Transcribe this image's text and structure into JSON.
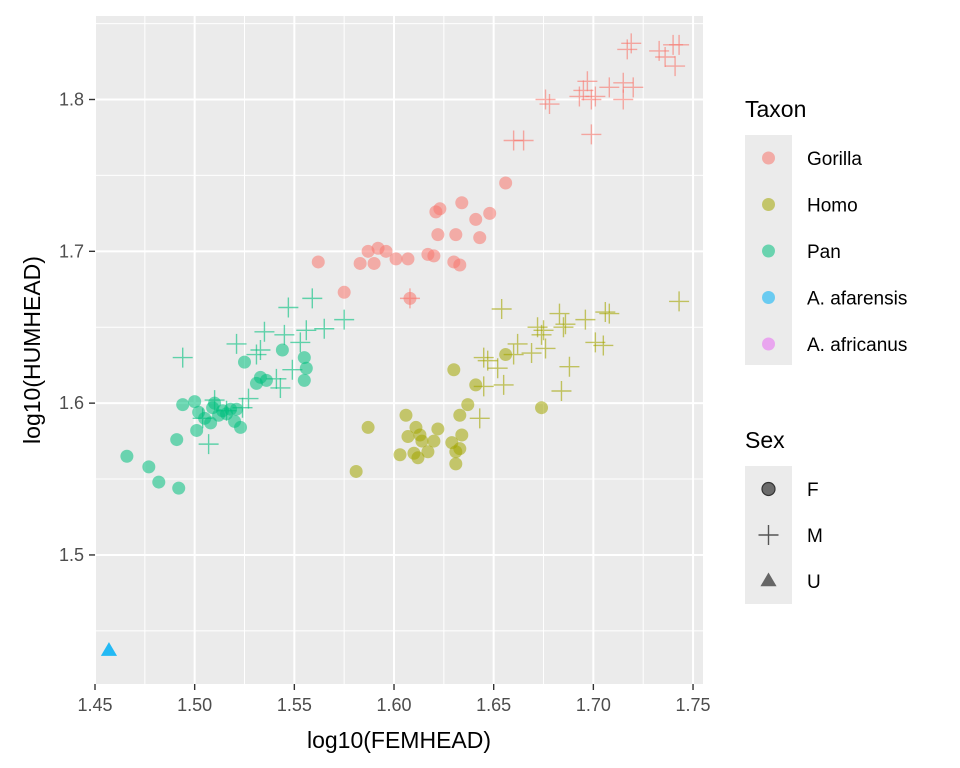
{
  "chart_data": {
    "type": "scatter",
    "xlabel": "log10(FEMHEAD)",
    "ylabel": "log10(HUMHEAD)",
    "xlim": [
      1.45,
      1.755
    ],
    "ylim": [
      1.415,
      1.855
    ],
    "x_ticks": [
      1.45,
      1.5,
      1.55,
      1.6,
      1.65,
      1.7,
      1.75
    ],
    "x_tick_labels": [
      "1.45",
      "1.50",
      "1.55",
      "1.60",
      "1.65",
      "1.70",
      "1.75"
    ],
    "y_ticks": [
      1.5,
      1.6,
      1.7,
      1.8
    ],
    "y_tick_labels": [
      "1.5",
      "1.6",
      "1.7",
      "1.8"
    ],
    "grid": true,
    "colors": {
      "Gorilla": "#F8766D",
      "Homo": "#A3A500",
      "Pan": "#00BF7D",
      "A. afarensis": "#00B0F6",
      "A. africanus": "#E76BF3"
    },
    "legend_taxon": {
      "title": "Taxon",
      "entries": [
        "Gorilla",
        "Homo",
        "Pan",
        "A. afarensis",
        "A. africanus"
      ]
    },
    "legend_sex": {
      "title": "Sex",
      "entries": [
        {
          "label": "F",
          "shape": "circle"
        },
        {
          "label": "M",
          "shape": "plus"
        },
        {
          "label": "U",
          "shape": "triangle"
        }
      ]
    },
    "series": [
      {
        "taxon": "Gorilla",
        "sex": "F",
        "shape": "circle",
        "points": [
          [
            1.562,
            1.693
          ],
          [
            1.575,
            1.673
          ],
          [
            1.583,
            1.692
          ],
          [
            1.587,
            1.7
          ],
          [
            1.59,
            1.692
          ],
          [
            1.592,
            1.702
          ],
          [
            1.596,
            1.7
          ],
          [
            1.601,
            1.695
          ],
          [
            1.607,
            1.695
          ],
          [
            1.608,
            1.669
          ],
          [
            1.617,
            1.698
          ],
          [
            1.62,
            1.697
          ],
          [
            1.621,
            1.726
          ],
          [
            1.622,
            1.711
          ],
          [
            1.623,
            1.728
          ],
          [
            1.63,
            1.693
          ],
          [
            1.631,
            1.711
          ],
          [
            1.633,
            1.691
          ],
          [
            1.634,
            1.732
          ],
          [
            1.641,
            1.721
          ],
          [
            1.643,
            1.709
          ],
          [
            1.648,
            1.725
          ],
          [
            1.656,
            1.745
          ]
        ]
      },
      {
        "taxon": "Gorilla",
        "sex": "M",
        "shape": "plus",
        "points": [
          [
            1.608,
            1.669
          ],
          [
            1.66,
            1.773
          ],
          [
            1.665,
            1.773
          ],
          [
            1.676,
            1.8
          ],
          [
            1.678,
            1.797
          ],
          [
            1.693,
            1.802
          ],
          [
            1.695,
            1.806
          ],
          [
            1.697,
            1.812
          ],
          [
            1.699,
            1.8
          ],
          [
            1.699,
            1.777
          ],
          [
            1.701,
            1.802
          ],
          [
            1.708,
            1.808
          ],
          [
            1.715,
            1.811
          ],
          [
            1.715,
            1.8
          ],
          [
            1.717,
            1.833
          ],
          [
            1.719,
            1.837
          ],
          [
            1.72,
            1.808
          ],
          [
            1.733,
            1.832
          ],
          [
            1.736,
            1.828
          ],
          [
            1.74,
            1.836
          ],
          [
            1.741,
            1.822
          ],
          [
            1.743,
            1.836
          ]
        ]
      },
      {
        "taxon": "Homo",
        "sex": "F",
        "shape": "circle",
        "points": [
          [
            1.581,
            1.555
          ],
          [
            1.587,
            1.584
          ],
          [
            1.603,
            1.566
          ],
          [
            1.606,
            1.592
          ],
          [
            1.607,
            1.578
          ],
          [
            1.61,
            1.567
          ],
          [
            1.611,
            1.584
          ],
          [
            1.612,
            1.564
          ],
          [
            1.613,
            1.579
          ],
          [
            1.614,
            1.575
          ],
          [
            1.617,
            1.568
          ],
          [
            1.62,
            1.575
          ],
          [
            1.622,
            1.583
          ],
          [
            1.629,
            1.574
          ],
          [
            1.63,
            1.622
          ],
          [
            1.631,
            1.56
          ],
          [
            1.631,
            1.568
          ],
          [
            1.633,
            1.592
          ],
          [
            1.633,
            1.57
          ],
          [
            1.634,
            1.579
          ],
          [
            1.637,
            1.599
          ],
          [
            1.641,
            1.612
          ],
          [
            1.656,
            1.632
          ],
          [
            1.674,
            1.597
          ]
        ]
      },
      {
        "taxon": "Homo",
        "sex": "M",
        "shape": "plus",
        "points": [
          [
            1.643,
            1.59
          ],
          [
            1.645,
            1.63
          ],
          [
            1.645,
            1.611
          ],
          [
            1.647,
            1.628
          ],
          [
            1.652,
            1.623
          ],
          [
            1.654,
            1.662
          ],
          [
            1.655,
            1.612
          ],
          [
            1.66,
            1.632
          ],
          [
            1.662,
            1.639
          ],
          [
            1.669,
            1.633
          ],
          [
            1.672,
            1.65
          ],
          [
            1.674,
            1.645
          ],
          [
            1.675,
            1.648
          ],
          [
            1.676,
            1.636
          ],
          [
            1.683,
            1.659
          ],
          [
            1.684,
            1.608
          ],
          [
            1.685,
            1.65
          ],
          [
            1.686,
            1.652
          ],
          [
            1.688,
            1.624
          ],
          [
            1.696,
            1.655
          ],
          [
            1.701,
            1.64
          ],
          [
            1.705,
            1.638
          ],
          [
            1.706,
            1.66
          ],
          [
            1.708,
            1.659
          ],
          [
            1.743,
            1.667
          ]
        ]
      },
      {
        "taxon": "Pan",
        "sex": "F",
        "shape": "circle",
        "points": [
          [
            1.466,
            1.565
          ],
          [
            1.477,
            1.558
          ],
          [
            1.482,
            1.548
          ],
          [
            1.491,
            1.576
          ],
          [
            1.492,
            1.544
          ],
          [
            1.494,
            1.599
          ],
          [
            1.5,
            1.601
          ],
          [
            1.501,
            1.582
          ],
          [
            1.502,
            1.594
          ],
          [
            1.505,
            1.59
          ],
          [
            1.508,
            1.587
          ],
          [
            1.509,
            1.597
          ],
          [
            1.51,
            1.6
          ],
          [
            1.512,
            1.592
          ],
          [
            1.514,
            1.595
          ],
          [
            1.516,
            1.593
          ],
          [
            1.518,
            1.596
          ],
          [
            1.52,
            1.588
          ],
          [
            1.521,
            1.596
          ],
          [
            1.523,
            1.584
          ],
          [
            1.525,
            1.627
          ],
          [
            1.531,
            1.613
          ],
          [
            1.533,
            1.617
          ],
          [
            1.536,
            1.615
          ],
          [
            1.544,
            1.635
          ],
          [
            1.555,
            1.63
          ],
          [
            1.555,
            1.615
          ],
          [
            1.556,
            1.623
          ]
        ]
      },
      {
        "taxon": "Pan",
        "sex": "M",
        "shape": "plus",
        "points": [
          [
            1.494,
            1.63
          ],
          [
            1.504,
            1.59
          ],
          [
            1.507,
            1.573
          ],
          [
            1.51,
            1.602
          ],
          [
            1.516,
            1.595
          ],
          [
            1.521,
            1.639
          ],
          [
            1.524,
            1.597
          ],
          [
            1.527,
            1.603
          ],
          [
            1.531,
            1.632
          ],
          [
            1.533,
            1.635
          ],
          [
            1.535,
            1.647
          ],
          [
            1.541,
            1.616
          ],
          [
            1.543,
            1.61
          ],
          [
            1.545,
            1.645
          ],
          [
            1.547,
            1.663
          ],
          [
            1.549,
            1.622
          ],
          [
            1.553,
            1.64
          ],
          [
            1.556,
            1.648
          ],
          [
            1.559,
            1.669
          ],
          [
            1.565,
            1.649
          ],
          [
            1.575,
            1.655
          ]
        ]
      },
      {
        "taxon": "A. afarensis",
        "sex": "U",
        "shape": "triangle",
        "points": [
          [
            1.457,
            1.437
          ]
        ]
      }
    ]
  }
}
